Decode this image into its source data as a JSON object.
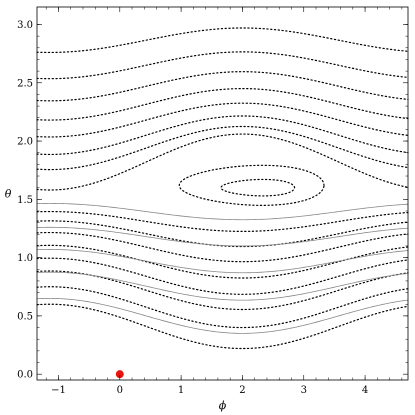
{
  "chart_data": {
    "type": "line",
    "title": "",
    "xlabel": "ϕ",
    "ylabel": "θ",
    "xlim": [
      -1.35,
      4.7
    ],
    "ylim": [
      -0.05,
      3.15
    ],
    "x_ticks": [
      -1,
      0,
      1,
      2,
      3,
      4
    ],
    "y_ticks": [
      0.0,
      0.5,
      1.0,
      1.5,
      2.0,
      2.5,
      3.0
    ],
    "x_tick_labels": [
      "−1",
      "0",
      "1",
      "2",
      "3",
      "4"
    ],
    "y_tick_labels": [
      "0.0",
      "0.5",
      "1.0",
      "1.5",
      "2.0",
      "2.5",
      "3.0"
    ],
    "grid": false,
    "legend": "none",
    "colors": {
      "dotted": "#000000",
      "solid": "#888888",
      "point": "#e8150f"
    },
    "series": [
      {
        "style": "dotted",
        "mean": 2.865,
        "amp": 0.105
      },
      {
        "style": "dotted",
        "mean": 2.65,
        "amp": 0.115
      },
      {
        "style": "dotted",
        "mean": 2.47,
        "amp": 0.125
      },
      {
        "style": "dotted",
        "mean": 2.315,
        "amp": 0.135
      },
      {
        "style": "dotted",
        "mean": 2.18,
        "amp": 0.145
      },
      {
        "style": "dotted",
        "mean": 2.05,
        "amp": 0.165
      },
      {
        "style": "dotted",
        "mean": 1.94,
        "amp": 0.185
      },
      {
        "style": "dotted",
        "mean": 1.82,
        "amp": 0.24
      },
      {
        "style": "dotted",
        "mean": 1.31,
        "amp": -0.085
      },
      {
        "style": "dotted",
        "mean": 1.205,
        "amp": -0.11
      },
      {
        "style": "dotted",
        "mean": 1.09,
        "amp": -0.125
      },
      {
        "style": "dotted",
        "mean": 0.965,
        "amp": -0.14
      },
      {
        "style": "dotted",
        "mean": 0.84,
        "amp": -0.155
      },
      {
        "style": "dotted",
        "mean": 0.72,
        "amp": -0.165
      },
      {
        "style": "dotted",
        "mean": 0.575,
        "amp": -0.175
      },
      {
        "style": "dotted",
        "mean": 0.41,
        "amp": -0.19
      },
      {
        "style": "solid",
        "mean": 1.395,
        "amp": -0.07
      },
      {
        "style": "solid",
        "mean": 1.18,
        "amp": -0.08
      },
      {
        "style": "solid",
        "mean": 0.97,
        "amp": -0.1
      },
      {
        "style": "solid",
        "mean": 0.755,
        "amp": -0.12
      },
      {
        "style": "solid",
        "mean": 0.5,
        "amp": -0.15
      }
    ],
    "closed_curves": [
      {
        "style": "dotted",
        "cx": 2.15,
        "cy": 1.62,
        "rx": 1.18,
        "ry": 0.17
      },
      {
        "style": "dotted",
        "cx": 2.25,
        "cy": 1.6,
        "rx": 0.6,
        "ry": 0.07
      }
    ],
    "points": [
      {
        "x": 0.0,
        "y": 0.0
      }
    ]
  }
}
